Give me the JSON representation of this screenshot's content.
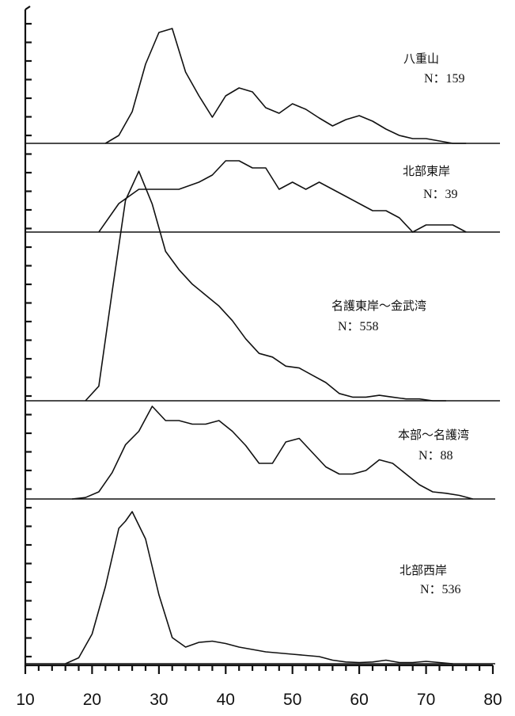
{
  "chart_data": {
    "type": "line",
    "xlim": [
      10,
      80
    ],
    "x_ticks": [
      10,
      20,
      30,
      40,
      50,
      60,
      70,
      80
    ],
    "panels": [
      {
        "name": "八重山",
        "n_label": "N：159",
        "x": [
          22,
          24,
          26,
          28,
          30,
          32,
          34,
          36,
          38,
          40,
          42,
          44,
          46,
          48,
          50,
          52,
          54,
          56,
          58,
          60,
          62,
          64,
          66,
          68,
          70,
          72,
          74,
          76
        ],
        "values": [
          0,
          1,
          4,
          10,
          14,
          14.5,
          9,
          6,
          3.3,
          6,
          7,
          6.5,
          4.5,
          3.8,
          5,
          4.3,
          3.2,
          2.2,
          3,
          3.5,
          2.8,
          1.8,
          1,
          0.6,
          0.6,
          0.3,
          0,
          0
        ]
      },
      {
        "name": "北部東岸",
        "n_label": "N：39",
        "x": [
          21,
          24,
          27,
          30,
          33,
          36,
          38,
          40,
          42,
          44,
          46,
          48,
          50,
          52,
          54,
          56,
          58,
          60,
          62,
          64,
          66,
          68,
          70,
          72,
          74,
          76
        ],
        "values": [
          0,
          2,
          3,
          3,
          3,
          3.5,
          4,
          5,
          5,
          4.5,
          4.5,
          3,
          3.5,
          3,
          3.5,
          3,
          2.5,
          2,
          1.5,
          1.5,
          1,
          0,
          0.5,
          0.5,
          0.5,
          0
        ]
      },
      {
        "name": "名護東岸～金武湾",
        "n_label": "N：558",
        "x": [
          19,
          21,
          23,
          25,
          27,
          29,
          31,
          33,
          35,
          37,
          39,
          41,
          43,
          45,
          47,
          49,
          51,
          53,
          55,
          57,
          59,
          61,
          63,
          65,
          67,
          69,
          71,
          73
        ],
        "values": [
          0,
          0.8,
          6,
          11,
          12.6,
          10.8,
          8.2,
          7.2,
          6.4,
          5.8,
          5.2,
          4.4,
          3.4,
          2.6,
          2.4,
          1.9,
          1.8,
          1.4,
          1.0,
          0.4,
          0.2,
          0.2,
          0.3,
          0.2,
          0.1,
          0.1,
          0,
          0
        ]
      },
      {
        "name": "本部～名護湾",
        "n_label": "N：88",
        "x": [
          17,
          19,
          21,
          23,
          25,
          27,
          29,
          31,
          33,
          35,
          37,
          39,
          41,
          43,
          45,
          47,
          49,
          51,
          53,
          55,
          57,
          59,
          61,
          63,
          65,
          67,
          69,
          71,
          73,
          75,
          77
        ],
        "values": [
          0,
          0.2,
          1,
          3.7,
          7.6,
          9.5,
          13,
          11,
          11,
          10.5,
          10.5,
          11,
          9.5,
          7.5,
          5,
          5,
          8,
          8.5,
          6.5,
          4.5,
          3.5,
          3.5,
          4,
          5.5,
          5,
          3.5,
          2,
          1,
          0.8,
          0.5,
          0
        ]
      },
      {
        "name": "北部西岸",
        "n_label": "N：536",
        "x": [
          16,
          18,
          20,
          22,
          24,
          25,
          26,
          28,
          30,
          32,
          34,
          36,
          38,
          40,
          42,
          44,
          46,
          48,
          50,
          52,
          54,
          56,
          58,
          60,
          62,
          64,
          66,
          68,
          70,
          72,
          74
        ],
        "values": [
          0,
          0.5,
          2.5,
          6.5,
          11.4,
          12,
          12.8,
          10.5,
          5.8,
          2.2,
          1.4,
          1.8,
          1.9,
          1.7,
          1.4,
          1.2,
          1.0,
          0.9,
          0.8,
          0.7,
          0.6,
          0.3,
          0.15,
          0.1,
          0.15,
          0.3,
          0.1,
          0.1,
          0.2,
          0.1,
          0
        ]
      }
    ],
    "grid": false
  }
}
